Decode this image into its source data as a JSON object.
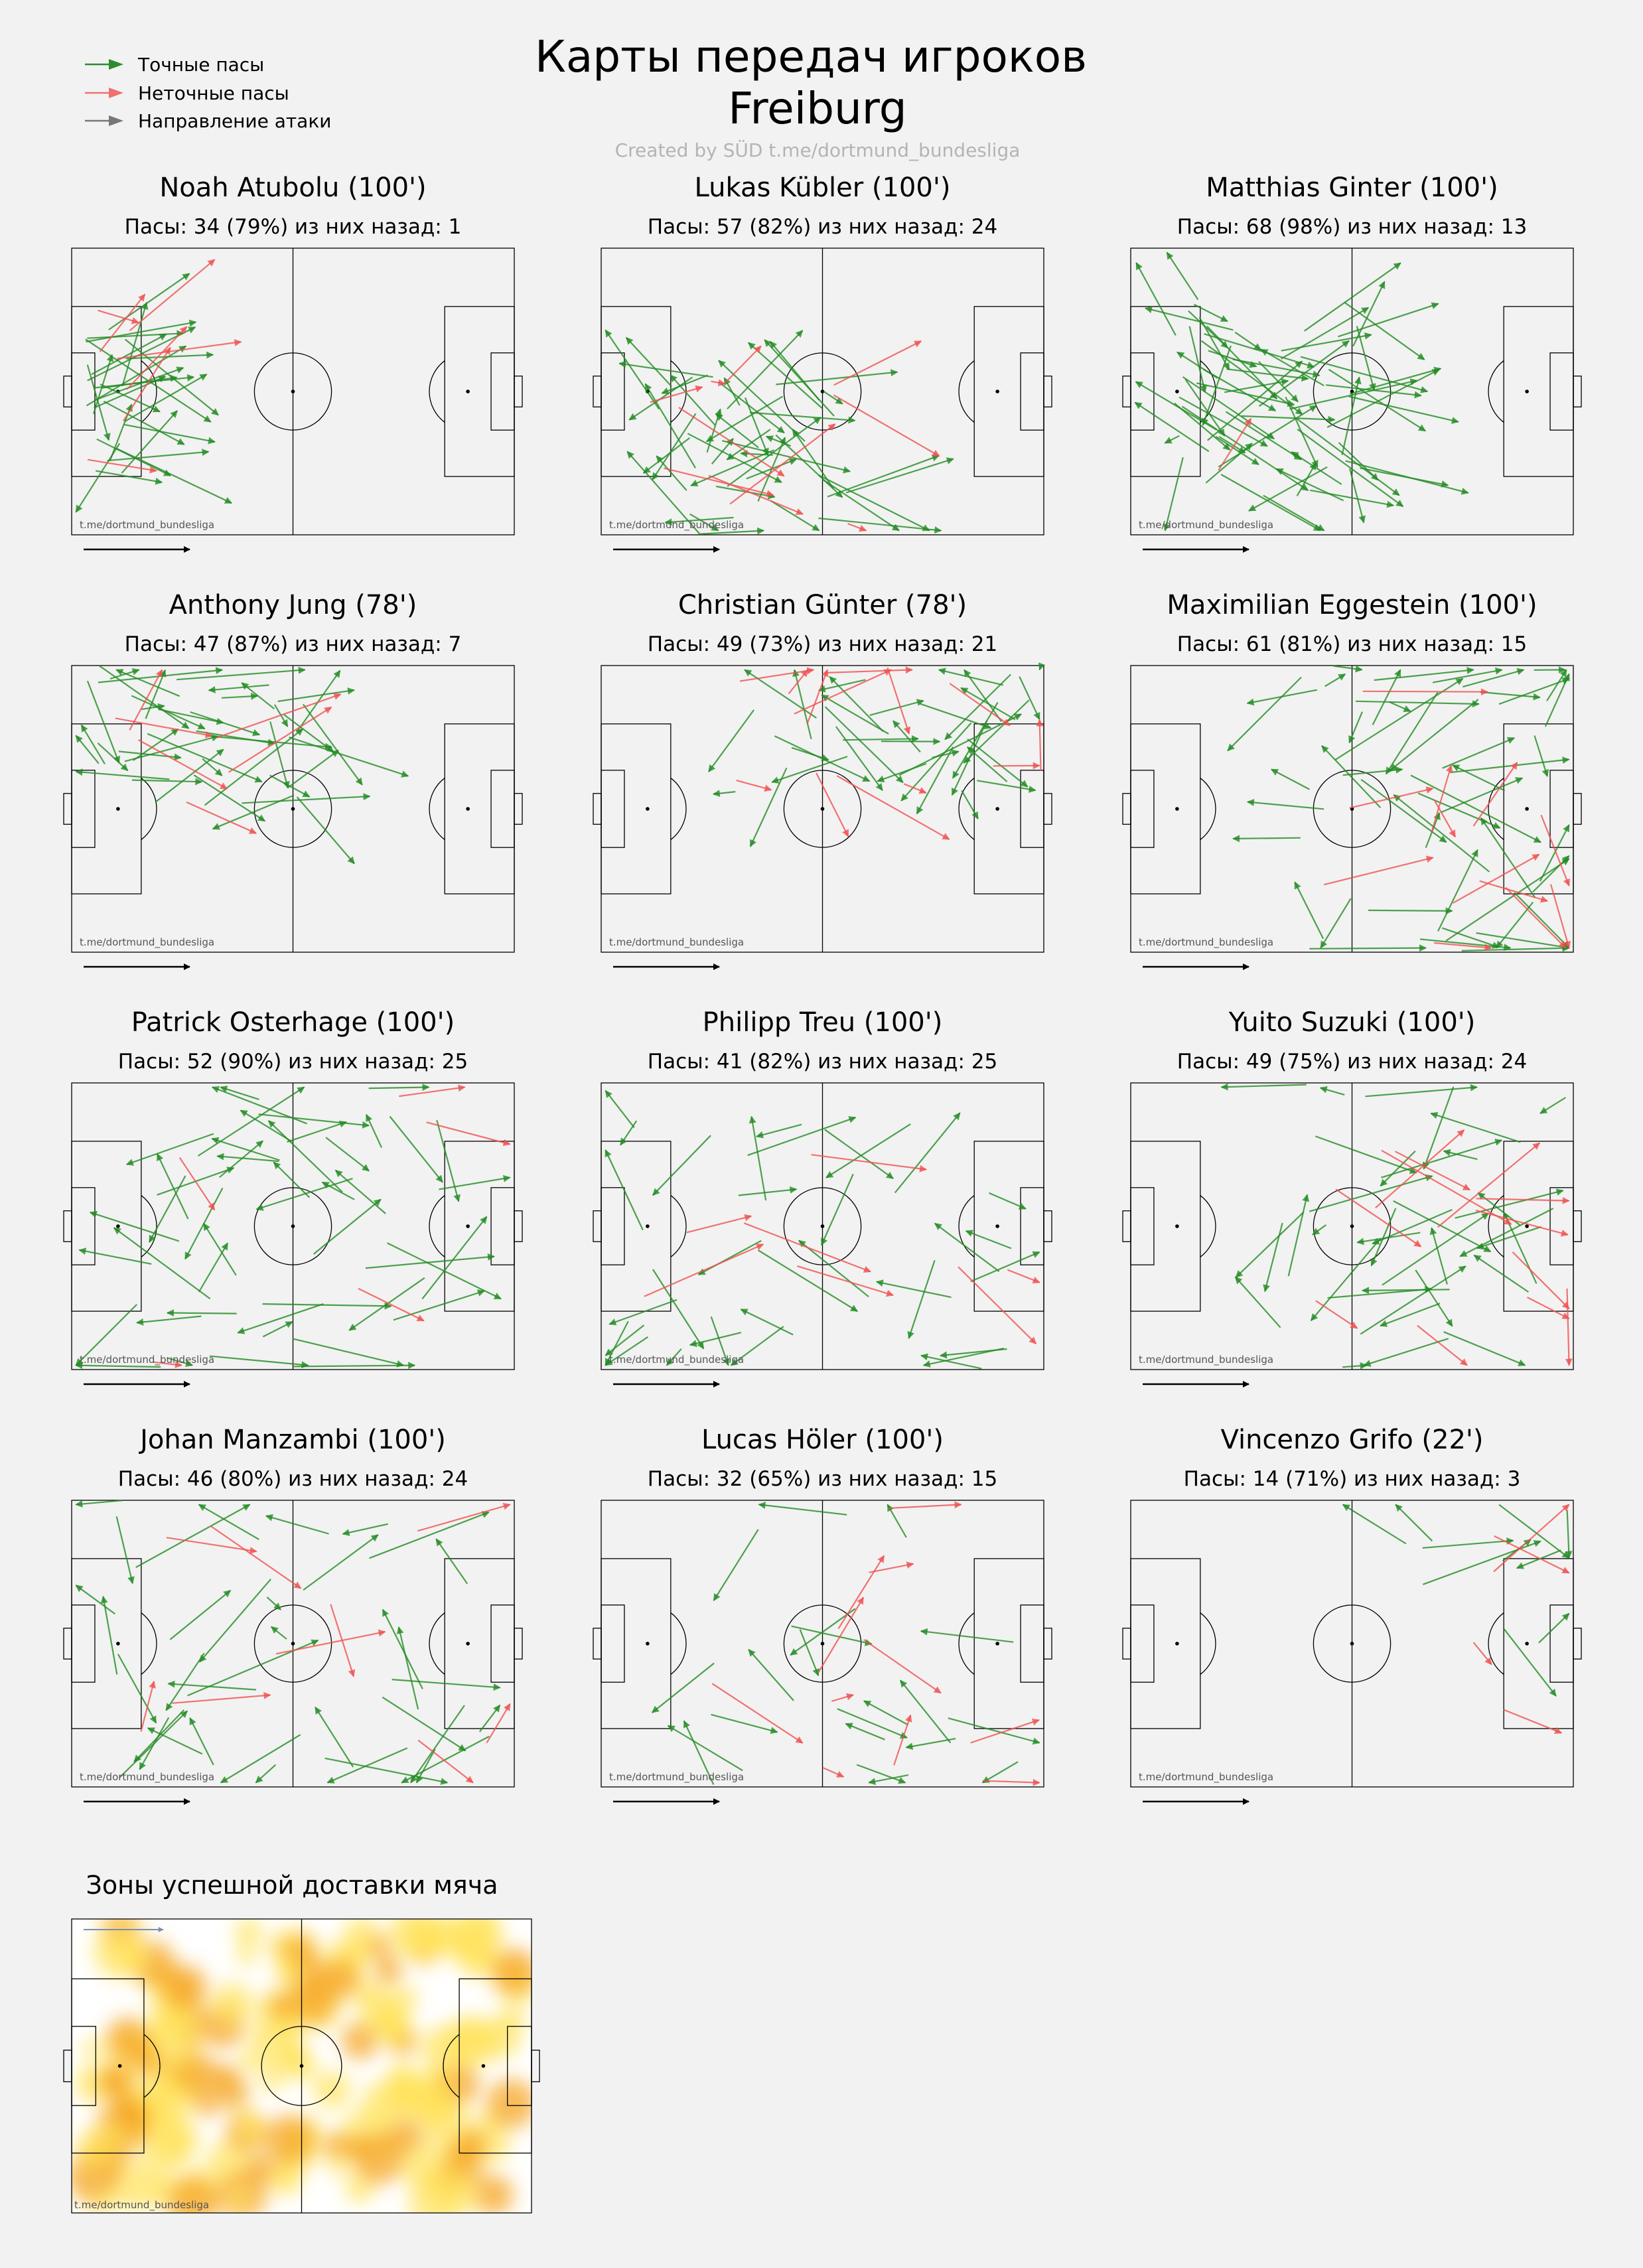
{
  "title_line1": "Карты передач игроков",
  "title_line2": "Freiburg",
  "credit": "Created by SÜD t.me/dortmund_bundesliga",
  "legend": [
    {
      "label": "Точные пасы",
      "color": "#2e8b2e"
    },
    {
      "label": "Неточные пасы",
      "color": "#f07070"
    },
    {
      "label": "Направление атаки",
      "color": "#777777"
    }
  ],
  "watermark": "t.me/dortmund_bundesliga",
  "colors": {
    "accurate": "#228B22",
    "inaccurate": "#F05050",
    "line": "#000000",
    "background": "#f2f2f2"
  },
  "chart_data": [
    {
      "type": "scatter",
      "player": "Noah Atubolu (100')",
      "stats": "Пасы: 34 (79%) из них назад: 1",
      "minutes": 100,
      "passes": 34,
      "accuracy_pct": 79,
      "backward": 1
    },
    {
      "type": "scatter",
      "player": "Lukas Kübler (100')",
      "stats": "Пасы: 57 (82%) из них назад: 24",
      "minutes": 100,
      "passes": 57,
      "accuracy_pct": 82,
      "backward": 24
    },
    {
      "type": "scatter",
      "player": "Matthias Ginter (100')",
      "stats": "Пасы: 68 (98%) из них назад: 13",
      "minutes": 100,
      "passes": 68,
      "accuracy_pct": 98,
      "backward": 13
    },
    {
      "type": "scatter",
      "player": "Anthony Jung (78')",
      "stats": "Пасы: 47 (87%) из них назад: 7",
      "minutes": 78,
      "passes": 47,
      "accuracy_pct": 87,
      "backward": 7
    },
    {
      "type": "scatter",
      "player": "Christian Günter (78')",
      "stats": "Пасы: 49 (73%) из них назад: 21",
      "minutes": 78,
      "passes": 49,
      "accuracy_pct": 73,
      "backward": 21
    },
    {
      "type": "scatter",
      "player": "Maximilian Eggestein (100')",
      "stats": "Пасы: 61 (81%) из них назад: 15",
      "minutes": 100,
      "passes": 61,
      "accuracy_pct": 81,
      "backward": 15
    },
    {
      "type": "scatter",
      "player": "Patrick Osterhage (100')",
      "stats": "Пасы: 52 (90%) из них назад: 25",
      "minutes": 100,
      "passes": 52,
      "accuracy_pct": 90,
      "backward": 25
    },
    {
      "type": "scatter",
      "player": "Philipp Treu (100')",
      "stats": "Пасы: 41 (82%) из них назад: 25",
      "minutes": 100,
      "passes": 41,
      "accuracy_pct": 82,
      "backward": 25
    },
    {
      "type": "scatter",
      "player": "Yuito Suzuki (100')",
      "stats": "Пасы: 49 (75%) из них назад: 24",
      "minutes": 100,
      "passes": 49,
      "accuracy_pct": 75,
      "backward": 24
    },
    {
      "type": "scatter",
      "player": "Johan Manzambi (100')",
      "stats": "Пасы: 46 (80%) из них назад: 24",
      "minutes": 100,
      "passes": 46,
      "accuracy_pct": 80,
      "backward": 24
    },
    {
      "type": "scatter",
      "player": "Lucas Höler (100')",
      "stats": "Пасы: 32 (65%) из них назад: 15",
      "minutes": 100,
      "passes": 32,
      "accuracy_pct": 65,
      "backward": 15
    },
    {
      "type": "scatter",
      "player": "Vincenzo Grifo (22')",
      "stats": "Пасы: 14 (71%) из них назад: 3",
      "minutes": 22,
      "passes": 14,
      "accuracy_pct": 71,
      "backward": 3
    }
  ],
  "heatmap": {
    "type": "heatmap",
    "title": "Зоны успешной доставки мяча",
    "watermark": "t.me/dortmund_bundesliga"
  }
}
